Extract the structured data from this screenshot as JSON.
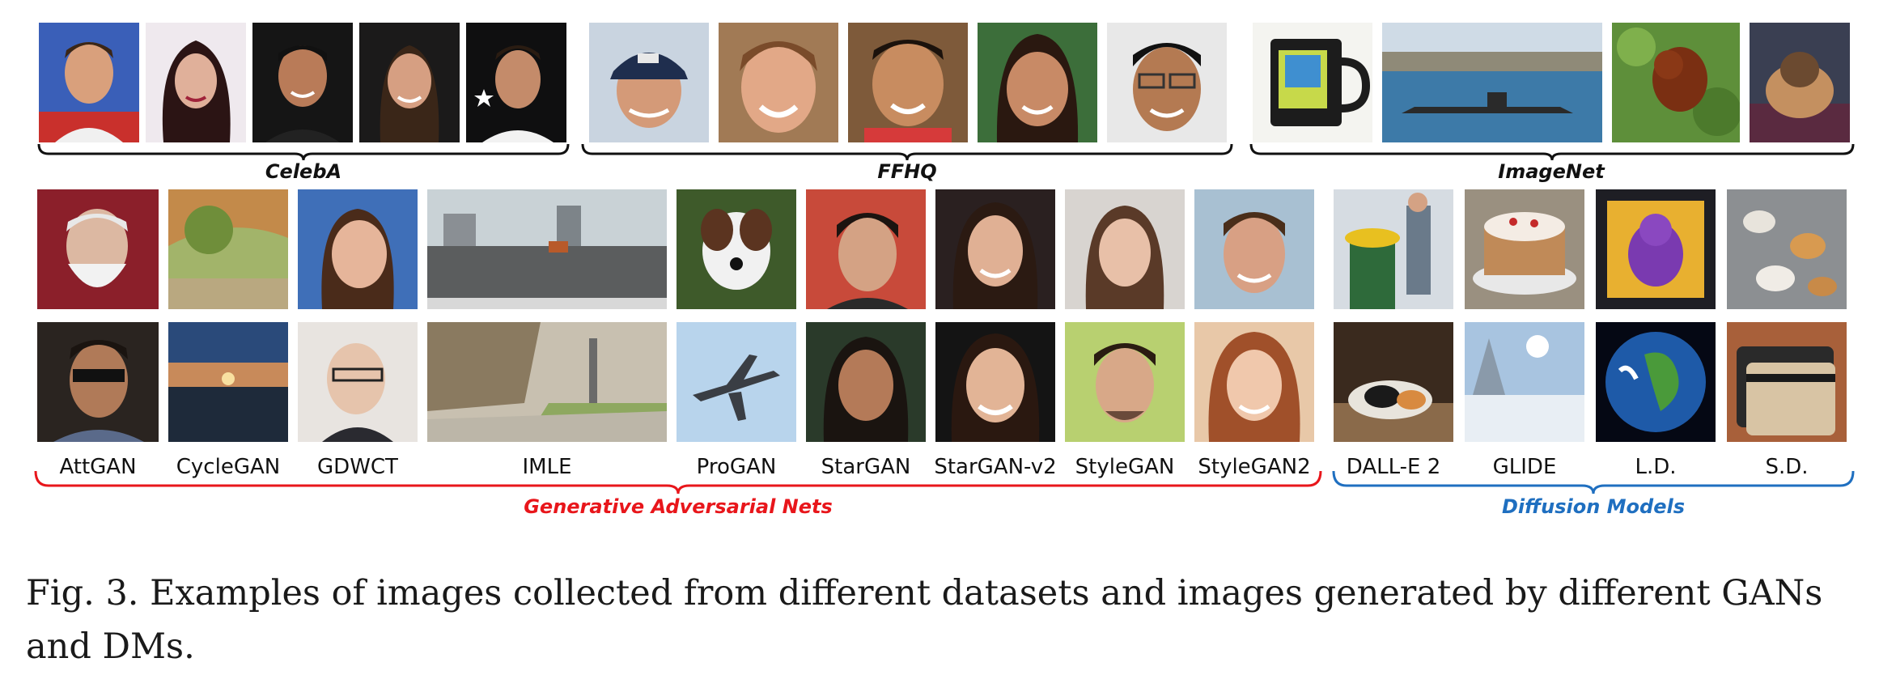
{
  "datasets": [
    {
      "label": "CelebA",
      "images": [
        "face-man-racing-suit",
        "face-woman-dark-hair",
        "face-man-dark-background",
        "face-woman-smiling",
        "face-man-star-background"
      ]
    },
    {
      "label": "FFHQ",
      "images": [
        "face-man-cap",
        "face-woman-laughing",
        "face-child-smiling",
        "face-girl-smiling",
        "face-man-glasses"
      ]
    },
    {
      "label": "ImageNet",
      "images": [
        "coffee-mug",
        "submarine-harbor",
        "monkey-in-tree",
        "dog-on-blanket"
      ]
    }
  ],
  "gan_models": [
    "AttGAN",
    "CycleGAN",
    "GDWCT",
    "IMLE",
    "ProGAN",
    "StarGAN",
    "StarGAN-v2",
    "StyleGAN",
    "StyleGAN2"
  ],
  "diffusion_models": [
    "DALL-E 2",
    "GLIDE",
    "L.D.",
    "S.D."
  ],
  "groups": {
    "gan": {
      "label": "Generative Adversarial Nets",
      "color": "#e8161b"
    },
    "dm": {
      "label": "Diffusion Models",
      "color": "#1f6fc0"
    }
  },
  "caption": "Fig. 3.  Examples of images collected from different datasets and images generated by different GANs and DMs."
}
